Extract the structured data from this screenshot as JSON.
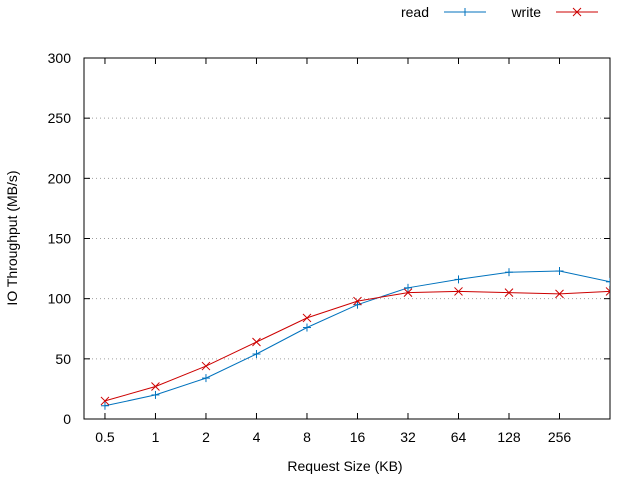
{
  "chart_data": {
    "type": "line",
    "title": "",
    "xlabel": "Request Size (KB)",
    "ylabel": "IO Throughput (MB/s)",
    "x_scale": "log2",
    "x": [
      0.5,
      1,
      2,
      4,
      8,
      16,
      32,
      64,
      128,
      256
    ],
    "x_tick_labels": [
      "0.5",
      "1",
      "2",
      "4",
      "8",
      "16",
      "32",
      "64",
      "128",
      "256"
    ],
    "xlim": [
      0.375,
      512
    ],
    "ylim": [
      0,
      300
    ],
    "y_ticks": [
      0,
      50,
      100,
      150,
      200,
      250,
      300
    ],
    "grid": "y-dotted",
    "legend_position": "top-right",
    "series": [
      {
        "name": "read",
        "color": "#0072bd",
        "marker": "plus",
        "x": [
          0.5,
          1,
          2,
          4,
          8,
          16,
          32,
          64,
          128,
          256,
          512
        ],
        "values": [
          11,
          20,
          34,
          54,
          76,
          95,
          109,
          116,
          122,
          123,
          114
        ]
      },
      {
        "name": "write",
        "color": "#cc0000",
        "marker": "cross",
        "x": [
          0.5,
          1,
          2,
          4,
          8,
          16,
          32,
          64,
          128,
          256,
          512
        ],
        "values": [
          15,
          27,
          44,
          64,
          84,
          98,
          105,
          106,
          105,
          104,
          106
        ]
      }
    ]
  }
}
